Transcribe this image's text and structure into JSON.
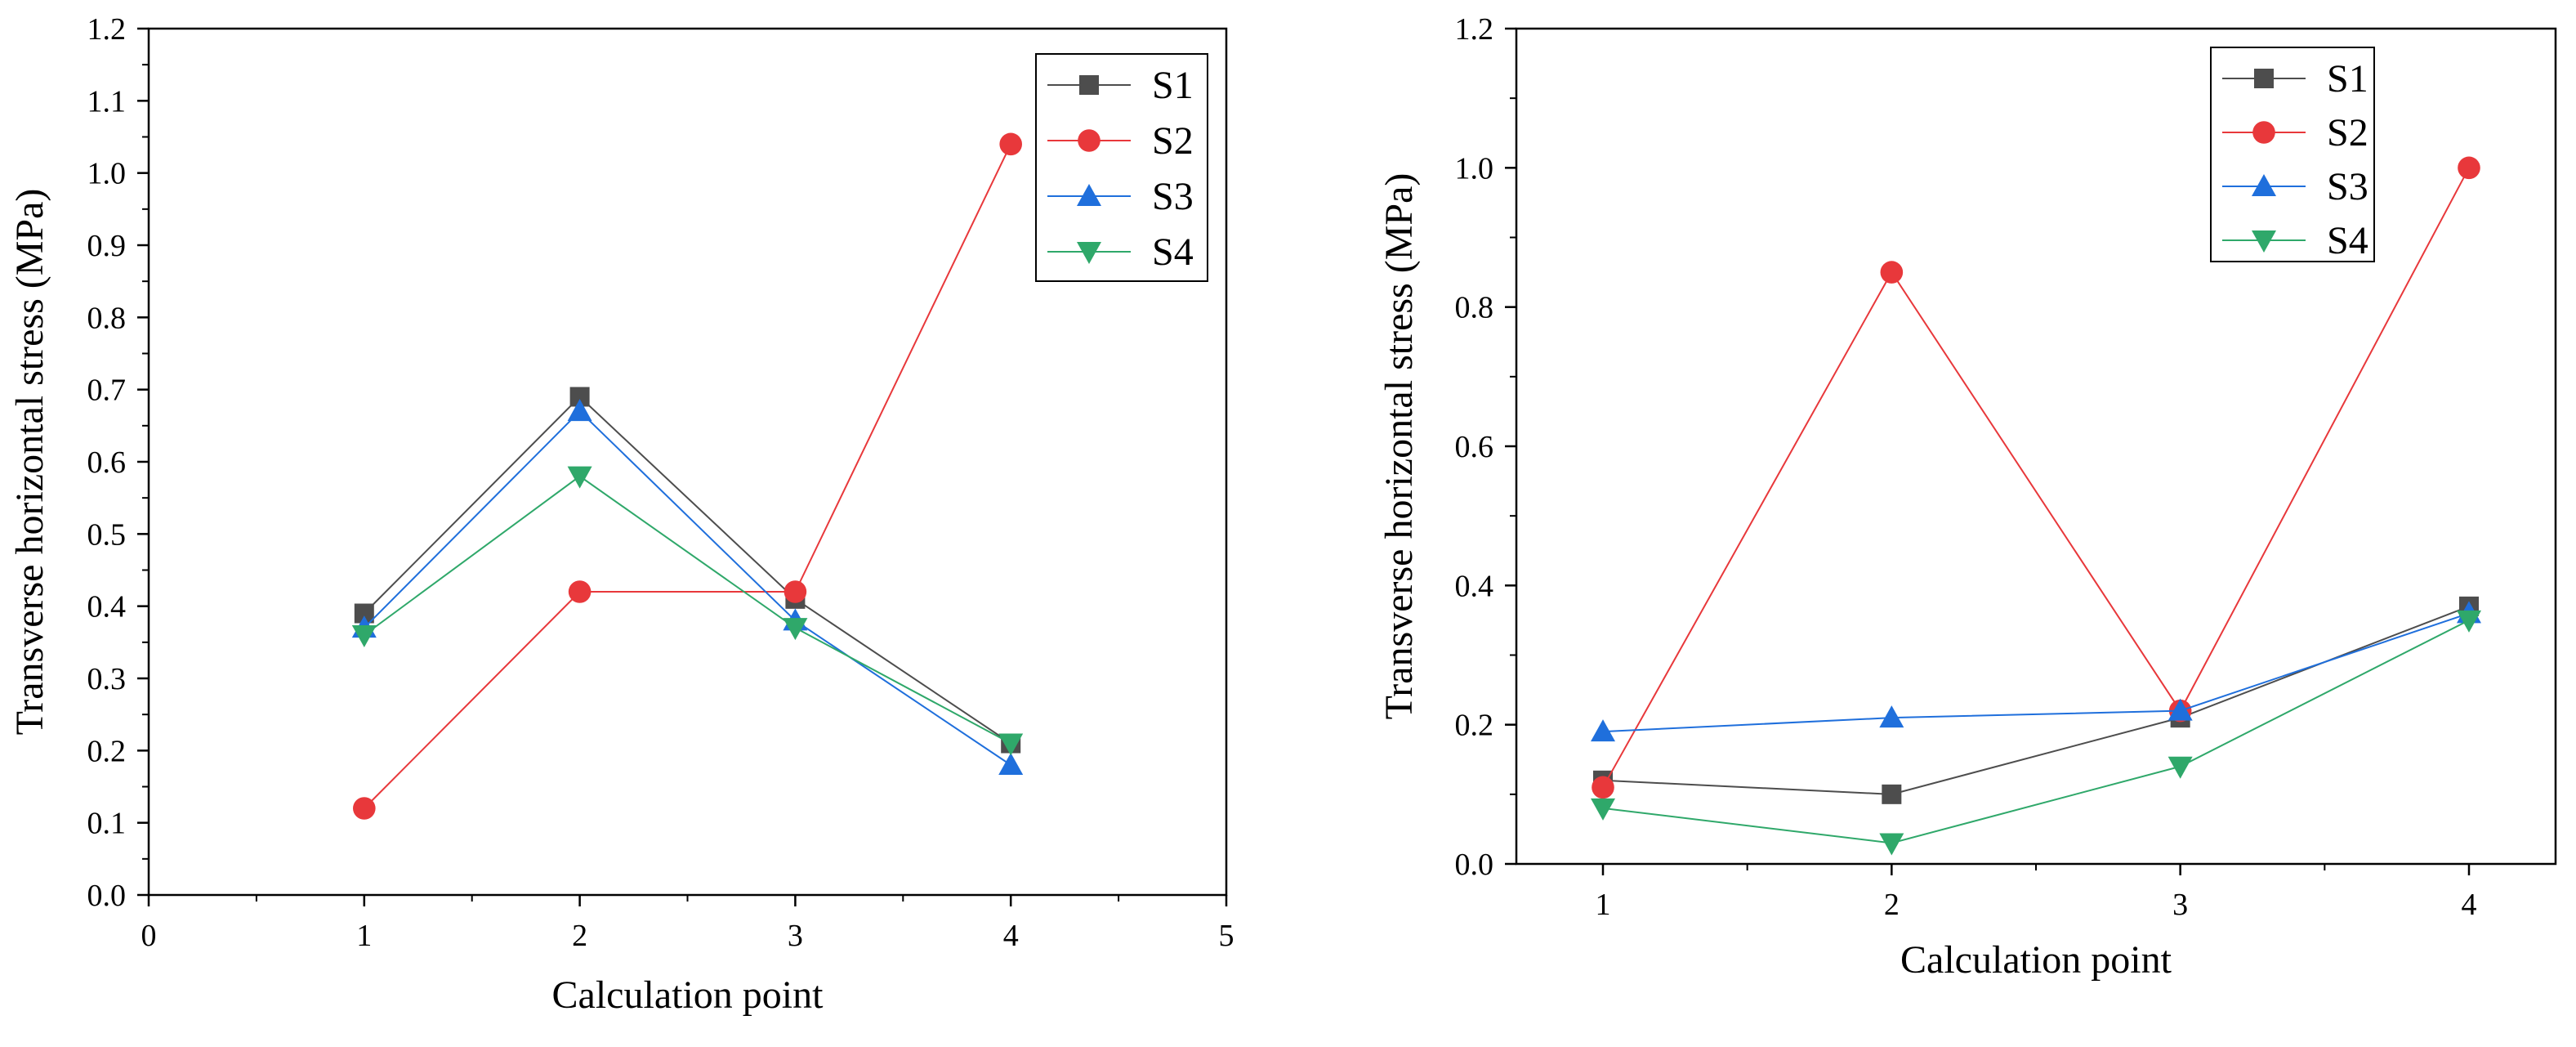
{
  "chart_data": [
    {
      "type": "line",
      "title": "",
      "xlabel": "Calculation point",
      "ylabel": "Transverse horizontal stress (MPa)",
      "xlim": [
        0,
        5
      ],
      "ylim": [
        0.0,
        1.2
      ],
      "xticks": [
        "0",
        "1",
        "2",
        "3",
        "4",
        "5"
      ],
      "yticks": [
        "0.0",
        "0.1",
        "0.2",
        "0.3",
        "0.4",
        "0.5",
        "0.6",
        "0.7",
        "0.8",
        "0.9",
        "1.0",
        "1.1",
        "1.2"
      ],
      "legend_position": "top-right",
      "grid": false,
      "x": [
        1,
        2,
        3,
        4
      ],
      "series": [
        {
          "name": "S1",
          "color": "#4d4d4d",
          "marker": "square",
          "values": [
            0.39,
            0.69,
            0.41,
            0.21
          ]
        },
        {
          "name": "S2",
          "color": "#e8383b",
          "marker": "circle",
          "values": [
            0.12,
            0.42,
            0.42,
            1.04
          ]
        },
        {
          "name": "S3",
          "color": "#1f6fdc",
          "marker": "triangle-up",
          "values": [
            0.37,
            0.67,
            0.38,
            0.18
          ]
        },
        {
          "name": "S4",
          "color": "#2fa86a",
          "marker": "triangle-down",
          "values": [
            0.36,
            0.58,
            0.37,
            0.21
          ]
        }
      ]
    },
    {
      "type": "line",
      "title": "",
      "xlabel": "Calculation point",
      "ylabel": "Transverse horizontal stress (MPa)",
      "xlim": [
        0.7,
        4.3
      ],
      "ylim": [
        0.0,
        1.2
      ],
      "xticks": [
        "1",
        "2",
        "3",
        "4"
      ],
      "yticks": [
        "0.0",
        "0.2",
        "0.4",
        "0.6",
        "0.8",
        "1.0",
        "1.2"
      ],
      "legend_position": "top-right",
      "grid": false,
      "x": [
        1,
        2,
        3,
        4
      ],
      "series": [
        {
          "name": "S1",
          "color": "#4d4d4d",
          "marker": "square",
          "values": [
            0.12,
            0.1,
            0.21,
            0.37
          ]
        },
        {
          "name": "S2",
          "color": "#e8383b",
          "marker": "circle",
          "values": [
            0.11,
            0.85,
            0.22,
            1.0
          ]
        },
        {
          "name": "S3",
          "color": "#1f6fdc",
          "marker": "triangle-up",
          "values": [
            0.19,
            0.21,
            0.22,
            0.36
          ]
        },
        {
          "name": "S4",
          "color": "#2fa86a",
          "marker": "triangle-down",
          "values": [
            0.08,
            0.03,
            0.14,
            0.35
          ]
        }
      ]
    }
  ]
}
